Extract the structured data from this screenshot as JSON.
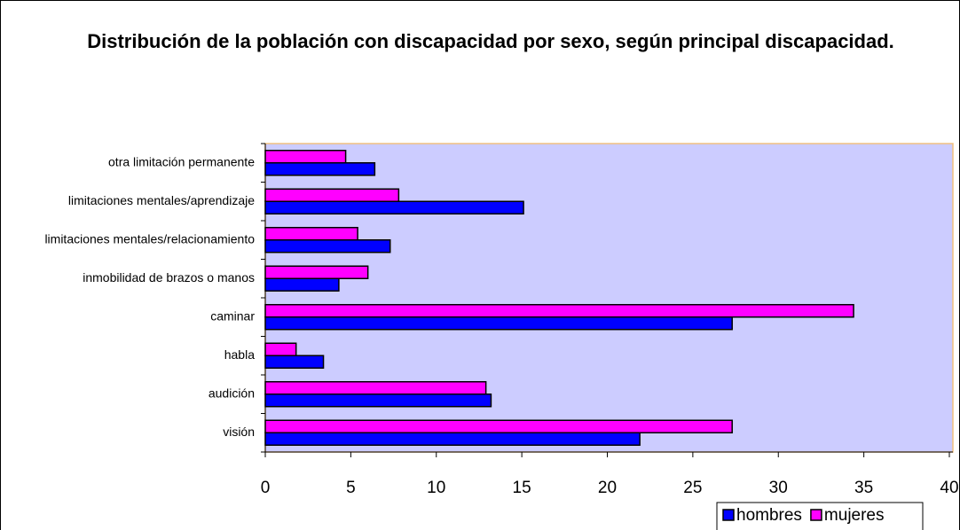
{
  "chart_data": {
    "type": "bar",
    "orientation": "horizontal",
    "title": "Distribución de la población con discapacidad por sexo, según principal discapacidad.",
    "categories": [
      "visión",
      "audición",
      "habla",
      "caminar",
      "inmobilidad de brazos o manos",
      "limitaciones mentales/relacionamiento",
      "limitaciones mentales/aprendizaje",
      "otra limitación permanente"
    ],
    "series": [
      {
        "name": "hombres",
        "color": "#0000ff",
        "values": [
          21.9,
          13.2,
          3.4,
          27.3,
          4.3,
          7.3,
          15.1,
          6.4
        ]
      },
      {
        "name": "mujeres",
        "color": "#ff00ff",
        "values": [
          27.3,
          12.9,
          1.8,
          34.4,
          6.0,
          5.4,
          7.8,
          4.7
        ]
      }
    ],
    "xlim": [
      0,
      40
    ],
    "xticks": [
      0,
      5,
      10,
      15,
      20,
      25,
      30,
      35,
      40
    ],
    "legend": "bottom",
    "plot_background": "#ccccff"
  }
}
